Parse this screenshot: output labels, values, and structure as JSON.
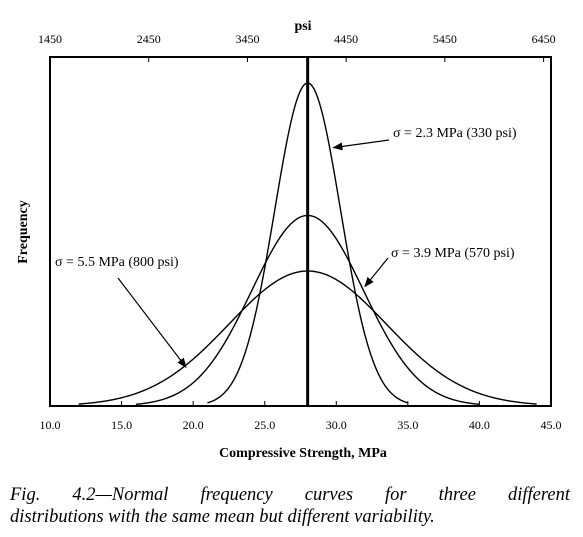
{
  "chart_data": {
    "type": "line",
    "title": "",
    "xlabel": "Compressive Strength, MPa",
    "ylabel": "Frequency",
    "x2label": "psi",
    "xlim": [
      10.0,
      45.0
    ],
    "x_ticks": [
      "10.0",
      "15.0",
      "20.0",
      "25.0",
      "30.0",
      "35.0",
      "40.0",
      "45.0"
    ],
    "x2_ticks": [
      "1450",
      "2450",
      "3450",
      "4450",
      "5450",
      "6450"
    ],
    "x2_tick_values": [
      1450,
      2450,
      3450,
      4450,
      5450,
      6450
    ],
    "psi_per_mpa": 145,
    "mean": 28.0,
    "grid": false,
    "series": [
      {
        "sigma": 2.3,
        "x_range": [
          21.0,
          35.0
        ],
        "peak": 1.0
      },
      {
        "sigma": 3.9,
        "x_range": [
          16.0,
          40.0
        ],
        "peak": 0.59
      },
      {
        "sigma": 5.5,
        "x_range": [
          12.0,
          44.0
        ],
        "peak": 0.418
      }
    ],
    "annotations": [
      {
        "text": "σ = 2.3 MPa (330 psi)",
        "arrow_to": [
          29.8,
          0.8
        ]
      },
      {
        "text": "σ = 3.9 MPa (570 psi)",
        "arrow_to": [
          32.0,
          0.37
        ]
      },
      {
        "text": "σ = 5.5 MPa (800 psi)",
        "arrow_to": [
          19.5,
          0.12
        ]
      }
    ]
  },
  "caption": {
    "line1": "Fig. 4.2—Normal frequency curves for three different",
    "line2": "distributions with the same mean but different variability."
  }
}
